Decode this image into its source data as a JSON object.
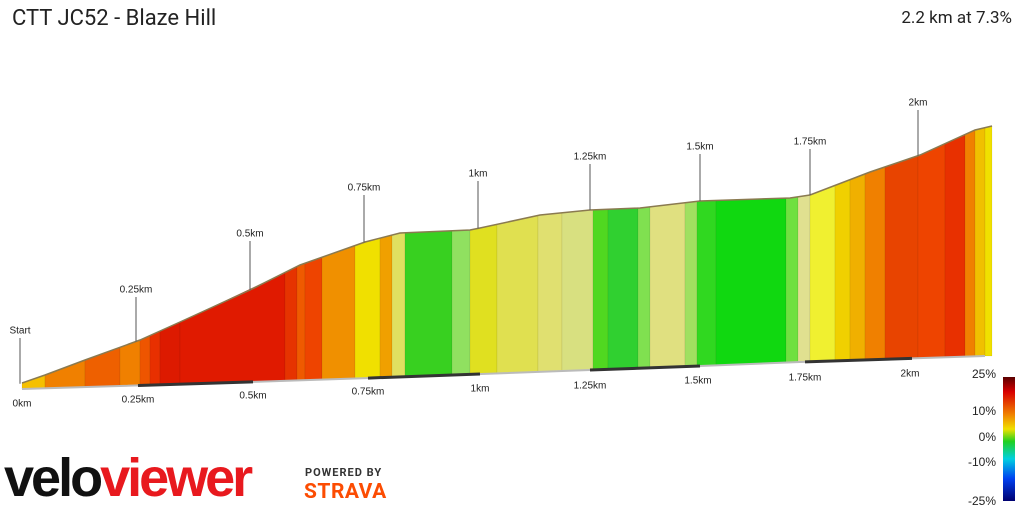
{
  "header": {
    "title": "CTT JC52 - Blaze Hill",
    "summary": "2.2 km at 7.3%"
  },
  "markers": {
    "top": [
      "Start",
      "0.25km",
      "0.5km",
      "0.75km",
      "1km",
      "1.25km",
      "1.5km",
      "1.75km",
      "2km"
    ],
    "bottom": [
      "0km",
      "0.25km",
      "0.5km",
      "0.75km",
      "1km",
      "1.25km",
      "1.5km",
      "1.75km",
      "2km"
    ]
  },
  "scale": {
    "labels": [
      "25%",
      "10%",
      "0%",
      "-10%",
      "-25%"
    ]
  },
  "logo": {
    "velo": "velo",
    "viewer": "viewer",
    "powered": "POWERED BY",
    "strava": "STRAVA"
  }
}
